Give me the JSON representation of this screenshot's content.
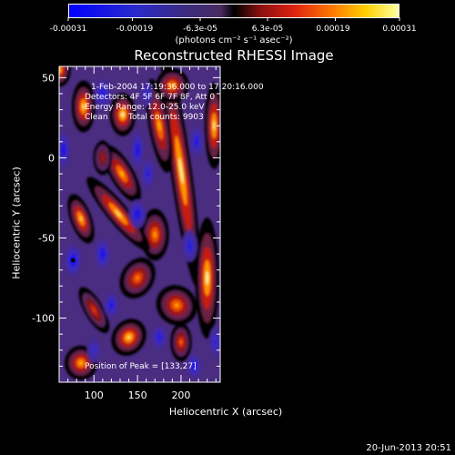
{
  "chart_data": {
    "type": "heatmap",
    "title": "Reconstructed RHESSI Image",
    "xlabel": "Heliocentric X (arcsec)",
    "ylabel": "Heliocentric Y (arcsec)",
    "xlim": [
      60,
      245
    ],
    "ylim": [
      -140,
      57
    ],
    "x_ticks": [
      100,
      150,
      200
    ],
    "y_ticks": [
      50,
      0,
      -50,
      -100
    ],
    "colorbar": {
      "tick_labels": [
        "-0.00031",
        "-0.00019",
        "-6.3e-05",
        "6.3e-05",
        "0.00019",
        "0.00031"
      ],
      "tick_values": [
        -0.00031,
        -0.00019,
        -6.3e-05,
        6.3e-05,
        0.00019,
        0.00031
      ],
      "range": [
        -0.00031,
        0.00031
      ],
      "unit": "(photons cm⁻² s⁻¹ asec⁻²)"
    },
    "annotations": {
      "time_range": "1-Feb-2004 17:19:36.000 to 17:20:16.000",
      "detectors": "Detectors: 4F 5F 6F 7F 8F, Att 0",
      "energy_range": "Energy Range: 12.0-25.0 keV",
      "method": "Clean",
      "total_counts": "Total counts: 9903",
      "peak_position": "Position of Peak = [133,27]"
    },
    "peak": [
      133,
      27
    ],
    "blobs": [
      {
        "x": 200,
        "y": -8,
        "v": 0.00031,
        "sx": 9,
        "sy": 55,
        "rot": 8
      },
      {
        "x": 230,
        "y": -75,
        "v": 0.00031,
        "sx": 10,
        "sy": 28,
        "rot": 0
      },
      {
        "x": 238,
        "y": 20,
        "v": 0.0003,
        "sx": 8,
        "sy": 20,
        "rot": 0
      },
      {
        "x": 175,
        "y": 20,
        "v": 0.00026,
        "sx": 9,
        "sy": 22,
        "rot": 10
      },
      {
        "x": 170,
        "y": -48,
        "v": 0.00024,
        "sx": 12,
        "sy": 12,
        "rot": 0
      },
      {
        "x": 128,
        "y": -35,
        "v": 0.00029,
        "sx": 9,
        "sy": 22,
        "rot": 40
      },
      {
        "x": 132,
        "y": -10,
        "v": 0.00026,
        "sx": 10,
        "sy": 15,
        "rot": 30
      },
      {
        "x": 133,
        "y": 27,
        "v": 0.00031,
        "sx": 11,
        "sy": 10,
        "rot": 0
      },
      {
        "x": 85,
        "y": -38,
        "v": 0.00028,
        "sx": 9,
        "sy": 12,
        "rot": 20
      },
      {
        "x": 88,
        "y": 32,
        "v": 0.00029,
        "sx": 10,
        "sy": 12,
        "rot": 0
      },
      {
        "x": 150,
        "y": -75,
        "v": 0.00022,
        "sx": 14,
        "sy": 10,
        "rot": -30
      },
      {
        "x": 195,
        "y": -92,
        "v": 0.00024,
        "sx": 18,
        "sy": 9,
        "rot": -40
      },
      {
        "x": 140,
        "y": -112,
        "v": 0.00029,
        "sx": 14,
        "sy": 9,
        "rot": -35
      },
      {
        "x": 200,
        "y": -115,
        "v": 0.0002,
        "sx": 9,
        "sy": 9,
        "rot": 0
      },
      {
        "x": 85,
        "y": -128,
        "v": 0.00026,
        "sx": 14,
        "sy": 8,
        "rot": 0
      },
      {
        "x": 100,
        "y": -95,
        "v": 0.00017,
        "sx": 8,
        "sy": 12,
        "rot": 30
      },
      {
        "x": 190,
        "y": 45,
        "v": 0.00025,
        "sx": 14,
        "sy": 8,
        "rot": -20
      },
      {
        "x": 60,
        "y": 55,
        "v": 0.00027,
        "sx": 10,
        "sy": 8,
        "rot": 0
      },
      {
        "x": 110,
        "y": 0,
        "v": 0.00012,
        "sx": 8,
        "sy": 8,
        "rot": 0
      },
      {
        "x": 76,
        "y": -64,
        "v": -0.00031,
        "sx": 10,
        "sy": 10,
        "rot": 0
      },
      {
        "x": 110,
        "y": -60,
        "v": -0.00028,
        "sx": 9,
        "sy": 10,
        "rot": 0
      },
      {
        "x": 150,
        "y": -35,
        "v": -0.00027,
        "sx": 10,
        "sy": 9,
        "rot": 0
      },
      {
        "x": 150,
        "y": 5,
        "v": -0.00026,
        "sx": 8,
        "sy": 12,
        "rot": 0
      },
      {
        "x": 110,
        "y": 40,
        "v": -0.00024,
        "sx": 10,
        "sy": 10,
        "rot": 0
      },
      {
        "x": 162,
        "y": -10,
        "v": -0.00022,
        "sx": 8,
        "sy": 10,
        "rot": 0
      },
      {
        "x": 65,
        "y": 5,
        "v": -0.00026,
        "sx": 8,
        "sy": 12,
        "rot": 0
      },
      {
        "x": 210,
        "y": -55,
        "v": -0.00023,
        "sx": 9,
        "sy": 10,
        "rot": 0
      },
      {
        "x": 218,
        "y": 10,
        "v": -0.00025,
        "sx": 8,
        "sy": 10,
        "rot": 0
      },
      {
        "x": 120,
        "y": -92,
        "v": -0.00025,
        "sx": 9,
        "sy": 8,
        "rot": 0
      },
      {
        "x": 175,
        "y": -112,
        "v": -0.00024,
        "sx": 9,
        "sy": 8,
        "rot": 0
      },
      {
        "x": 215,
        "y": -130,
        "v": -0.00026,
        "sx": 9,
        "sy": 8,
        "rot": 0
      },
      {
        "x": 240,
        "y": -115,
        "v": -0.0002,
        "sx": 8,
        "sy": 10,
        "rot": 0
      },
      {
        "x": 160,
        "y": 40,
        "v": -0.00018,
        "sx": 8,
        "sy": 8,
        "rot": 0
      },
      {
        "x": 100,
        "y": -120,
        "v": -0.00018,
        "sx": 8,
        "sy": 8,
        "rot": 0
      }
    ]
  },
  "footer": {
    "date": "20-Jun-2013 20:51"
  }
}
